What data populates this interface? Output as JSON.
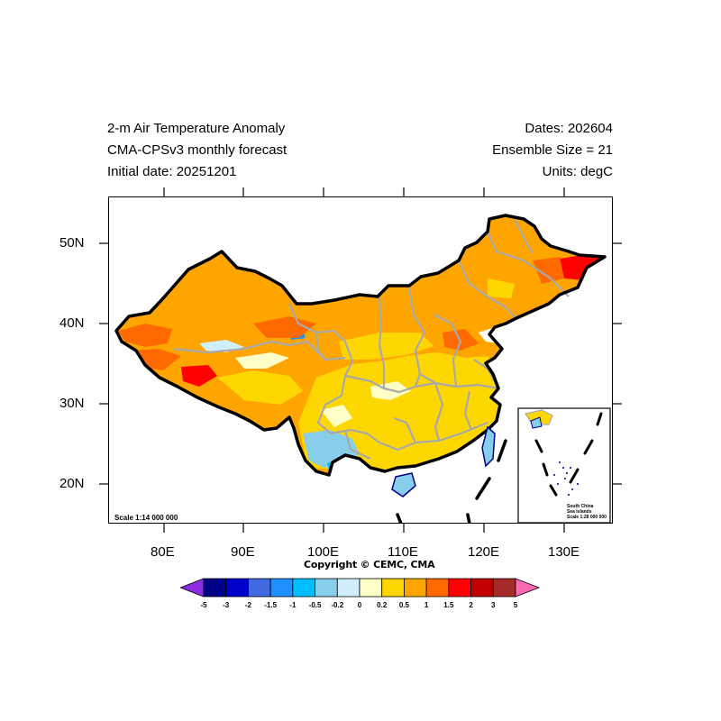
{
  "titles": {
    "line1_left": "2-m Air Temperature Anomaly",
    "line2_left": "CMA-CPSv3 monthly forecast",
    "line3_left": "Initial date: 20251201",
    "line1_right": "Dates: 202604",
    "line2_right": "Ensemble Size = 21",
    "line3_right": "Units: degC"
  },
  "axes": {
    "x_ticks": [
      "80E",
      "90E",
      "100E",
      "110E",
      "120E",
      "130E"
    ],
    "y_ticks": [
      "50N",
      "40N",
      "30N",
      "20N"
    ],
    "lon_range": [
      73,
      136
    ],
    "lat_range": [
      15,
      56
    ]
  },
  "map": {
    "scale_text": "Scale 1:14 000 000",
    "copyright": "Copyright © CEMC, CMA",
    "inset": {
      "line1": "South China",
      "line2": "Sea Islands",
      "line3": "Scale 1:28 000 000"
    }
  },
  "colorbar": {
    "labels": [
      "-5",
      "-3",
      "-2",
      "-1.5",
      "-1",
      "-0.5",
      "-0.2",
      "0",
      "0.2",
      "0.5",
      "1",
      "1.5",
      "2",
      "3",
      "5"
    ],
    "colors": [
      "#8b2be2",
      "#00008b",
      "#0000cd",
      "#4169e1",
      "#1e90ff",
      "#00bfff",
      "#87ceeb",
      "#cfefff",
      "#ffffc8",
      "#ffd700",
      "#ffa500",
      "#ff6a00",
      "#ff0000",
      "#c00000",
      "#a52a2a",
      "#ff69b4"
    ]
  }
}
